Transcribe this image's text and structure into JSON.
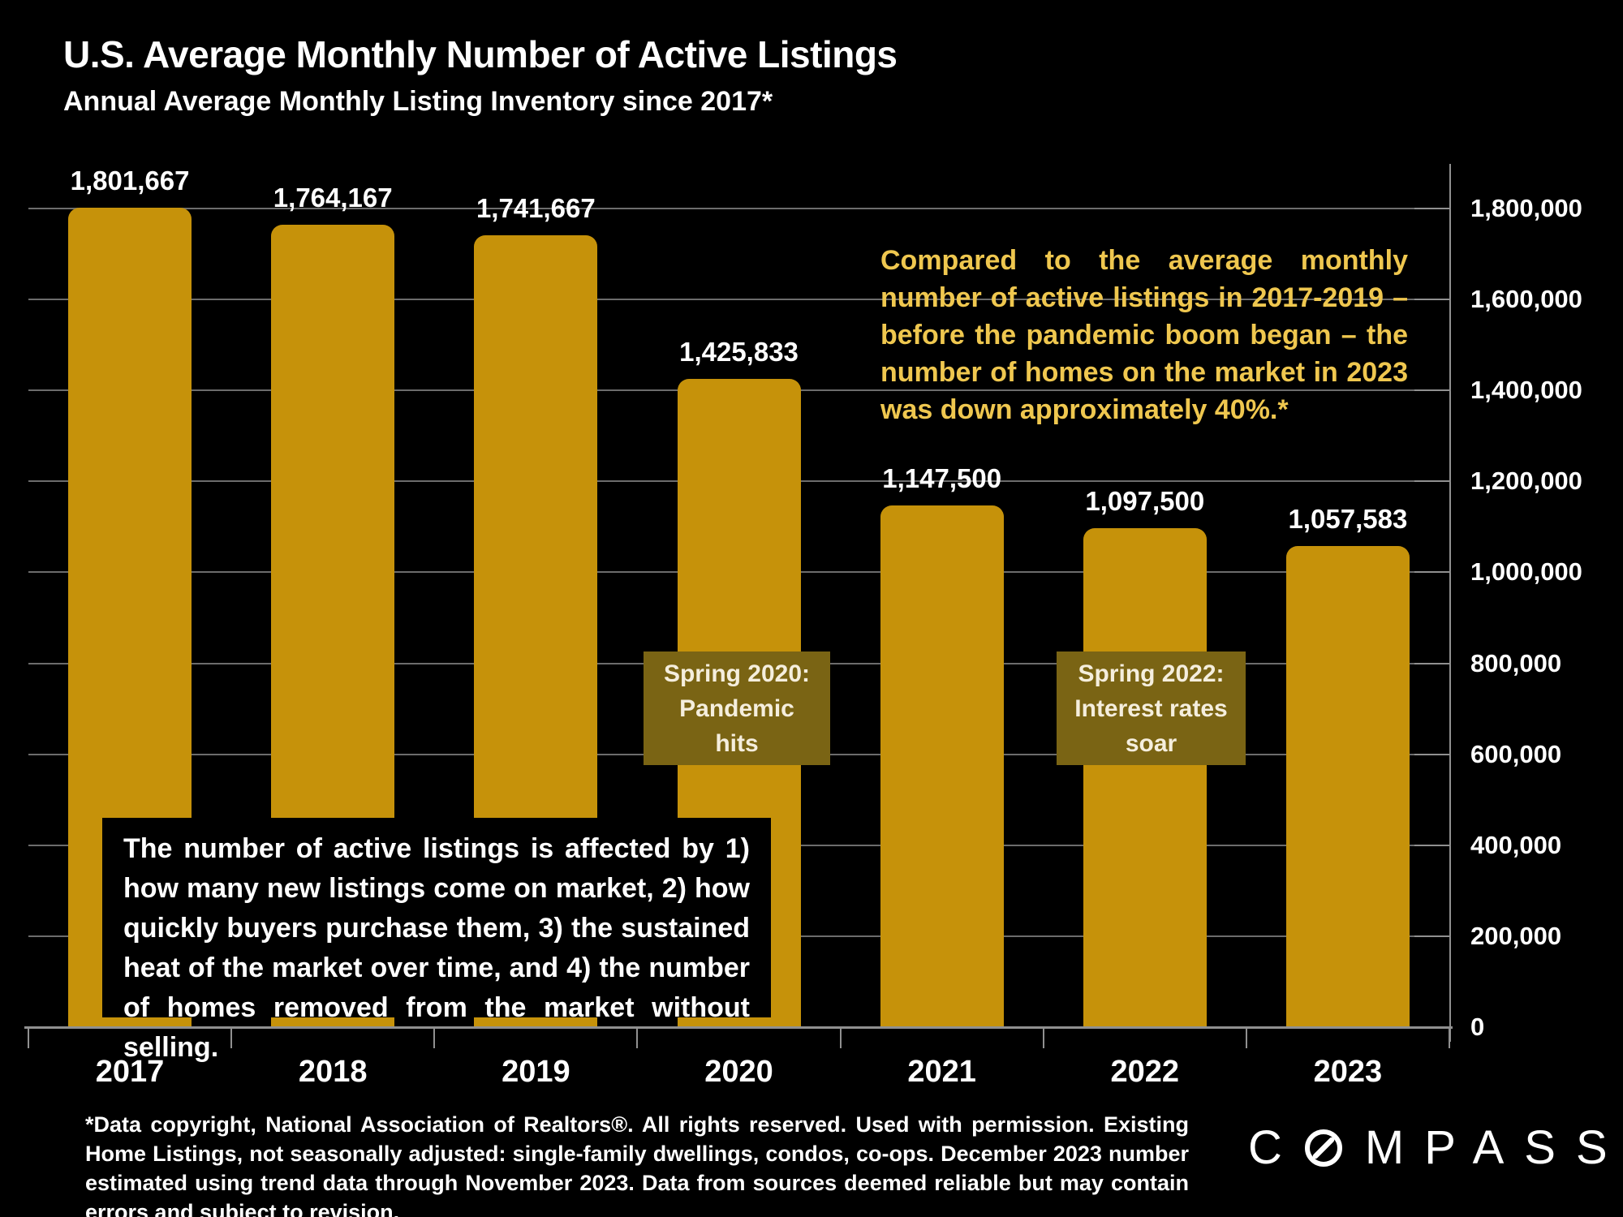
{
  "header": {
    "title": "U.S. Average Monthly Number of Active Listings",
    "subtitle": "Annual Average Monthly Listing Inventory since 2017*"
  },
  "chart_data": {
    "type": "bar",
    "title": "U.S. Average Monthly Number of Active Listings",
    "xlabel": "",
    "ylabel": "",
    "categories": [
      "2017",
      "2018",
      "2019",
      "2020",
      "2021",
      "2022",
      "2023"
    ],
    "values": [
      1801667,
      1764167,
      1741667,
      1425833,
      1147500,
      1097500,
      1057583
    ],
    "value_labels": [
      "1,801,667",
      "1,764,167",
      "1,741,667",
      "1,425,833",
      "1,147,500",
      "1,097,500",
      "1,057,583"
    ],
    "ylim": [
      0,
      1800000
    ],
    "y_axis": {
      "max": 1800000,
      "step": 200000,
      "labels": [
        "1,800,000",
        "1,600,000",
        "1,400,000",
        "1,200,000",
        "1,000,000",
        "800,000",
        "600,000",
        "400,000",
        "200,000",
        "0"
      ],
      "position": "right"
    },
    "grid": true,
    "legend": false
  },
  "annotations": {
    "gold_note": "Compared to the average monthly number of active listings in 2017-2019 – before the pandemic boom began – the number of homes on the market in 2023 was down approximately 40%.*",
    "callout_2020": {
      "lines": [
        "Spring 2020:",
        "Pandemic",
        "hits"
      ]
    },
    "callout_2022": {
      "lines": [
        "Spring 2022:",
        "Interest rates",
        "soar"
      ]
    },
    "info_box": "The number of active listings is affected by 1) how many new listings come on market, 2) how quickly buyers purchase them, 3) the sustained heat of the market over time, and 4) the number of homes removed from the market without selling."
  },
  "footer": {
    "note": "*Data copyright, National Association of Realtors®. All rights reserved. Used with permission. Existing Home Listings, not seasonally adjusted: single-family dwellings, condos, co-ops. December 2023 number estimated using trend data through November 2023. Data from sources deemed reliable but may contain errors and subject to revision.",
    "logo": {
      "text": "COMPASS",
      "prefix": "C",
      "suffix": "MPASS"
    }
  },
  "colors": {
    "background": "#000000",
    "bar": "#C6920A",
    "gold_text": "#EFC74F",
    "callout_bg": "#7A6414",
    "callout_text": "#F5EEDD",
    "gridline": "#6C6C6C",
    "axis": "#909090",
    "text": "#FFFFFF"
  }
}
